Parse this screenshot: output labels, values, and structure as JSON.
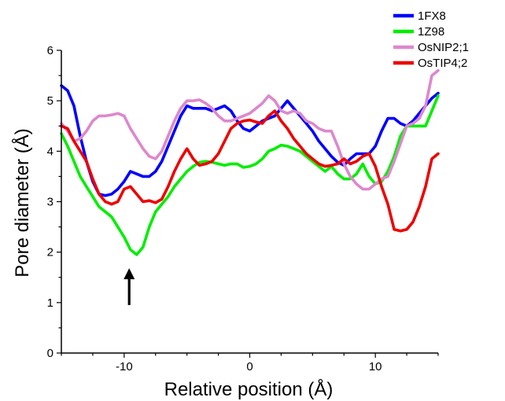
{
  "chart_data": {
    "type": "line",
    "xlabel": "Relative position (Å)",
    "ylabel": "Pore diameter (Å)",
    "xlim": [
      -15,
      15
    ],
    "ylim": [
      0,
      6
    ],
    "x_ticks": [
      -10,
      0,
      10
    ],
    "y_ticks": [
      0,
      1,
      2,
      3,
      4,
      5,
      6
    ],
    "grid": false,
    "legend_position": "top-right",
    "annotation": {
      "type": "arrow",
      "direction": "up",
      "x": -9.6,
      "y_from": 0.95,
      "y_to": 1.65
    },
    "series": [
      {
        "name": "1FX8",
        "color": "#0000ff",
        "points": [
          [
            -15,
            5.3
          ],
          [
            -14.5,
            5.2
          ],
          [
            -14,
            4.9
          ],
          [
            -13.5,
            4.3
          ],
          [
            -13,
            3.8
          ],
          [
            -12.5,
            3.4
          ],
          [
            -12,
            3.15
          ],
          [
            -11.5,
            3.12
          ],
          [
            -11,
            3.15
          ],
          [
            -10.5,
            3.25
          ],
          [
            -10,
            3.4
          ],
          [
            -9.5,
            3.6
          ],
          [
            -9,
            3.55
          ],
          [
            -8.5,
            3.5
          ],
          [
            -8,
            3.5
          ],
          [
            -7.5,
            3.6
          ],
          [
            -7,
            3.8
          ],
          [
            -6.5,
            4.1
          ],
          [
            -6,
            4.4
          ],
          [
            -5.5,
            4.7
          ],
          [
            -5,
            4.9
          ],
          [
            -4.5,
            4.85
          ],
          [
            -4,
            4.85
          ],
          [
            -3.5,
            4.85
          ],
          [
            -3,
            4.8
          ],
          [
            -2.5,
            4.85
          ],
          [
            -2,
            4.9
          ],
          [
            -1.5,
            4.8
          ],
          [
            -1,
            4.6
          ],
          [
            -0.5,
            4.45
          ],
          [
            0,
            4.4
          ],
          [
            0.5,
            4.5
          ],
          [
            1,
            4.6
          ],
          [
            1.5,
            4.65
          ],
          [
            2,
            4.7
          ],
          [
            2.5,
            4.85
          ],
          [
            3,
            5.0
          ],
          [
            3.5,
            4.85
          ],
          [
            4,
            4.7
          ],
          [
            4.5,
            4.55
          ],
          [
            5,
            4.4
          ],
          [
            5.5,
            4.2
          ],
          [
            6,
            4.05
          ],
          [
            6.5,
            3.9
          ],
          [
            7,
            3.78
          ],
          [
            7.5,
            3.72
          ],
          [
            8,
            3.85
          ],
          [
            8.5,
            3.95
          ],
          [
            9,
            3.95
          ],
          [
            9.5,
            3.95
          ],
          [
            10,
            4.1
          ],
          [
            10.5,
            4.4
          ],
          [
            11,
            4.65
          ],
          [
            11.5,
            4.65
          ],
          [
            12,
            4.55
          ],
          [
            12.5,
            4.5
          ],
          [
            13,
            4.6
          ],
          [
            13.5,
            4.75
          ],
          [
            14,
            4.9
          ],
          [
            14.5,
            5.05
          ],
          [
            15,
            5.15
          ]
        ]
      },
      {
        "name": "1Z98",
        "color": "#00ee00",
        "points": [
          [
            -15,
            4.35
          ],
          [
            -14.5,
            4.1
          ],
          [
            -14,
            3.8
          ],
          [
            -13.5,
            3.5
          ],
          [
            -13,
            3.3
          ],
          [
            -12.5,
            3.1
          ],
          [
            -12,
            2.9
          ],
          [
            -11.5,
            2.8
          ],
          [
            -11,
            2.7
          ],
          [
            -10.5,
            2.5
          ],
          [
            -10,
            2.3
          ],
          [
            -9.5,
            2.05
          ],
          [
            -9,
            1.95
          ],
          [
            -8.5,
            2.1
          ],
          [
            -8,
            2.5
          ],
          [
            -7.5,
            2.8
          ],
          [
            -7,
            2.95
          ],
          [
            -6.5,
            3.1
          ],
          [
            -6,
            3.3
          ],
          [
            -5.5,
            3.45
          ],
          [
            -5,
            3.6
          ],
          [
            -4.5,
            3.7
          ],
          [
            -4,
            3.78
          ],
          [
            -3.5,
            3.8
          ],
          [
            -3,
            3.78
          ],
          [
            -2.5,
            3.75
          ],
          [
            -2,
            3.72
          ],
          [
            -1.5,
            3.75
          ],
          [
            -1,
            3.75
          ],
          [
            -0.5,
            3.68
          ],
          [
            0,
            3.7
          ],
          [
            0.5,
            3.75
          ],
          [
            1,
            3.85
          ],
          [
            1.5,
            4.0
          ],
          [
            2,
            4.05
          ],
          [
            2.5,
            4.12
          ],
          [
            3,
            4.1
          ],
          [
            3.5,
            4.05
          ],
          [
            4,
            4.0
          ],
          [
            4.5,
            3.9
          ],
          [
            5,
            3.8
          ],
          [
            5.5,
            3.7
          ],
          [
            6,
            3.6
          ],
          [
            6.5,
            3.7
          ],
          [
            7,
            3.55
          ],
          [
            7.5,
            3.45
          ],
          [
            8,
            3.45
          ],
          [
            8.5,
            3.55
          ],
          [
            9,
            3.75
          ],
          [
            9.5,
            3.5
          ],
          [
            10,
            3.35
          ],
          [
            10.5,
            3.4
          ],
          [
            11,
            3.6
          ],
          [
            11.5,
            3.9
          ],
          [
            12,
            4.3
          ],
          [
            12.5,
            4.5
          ],
          [
            13,
            4.5
          ],
          [
            13.5,
            4.5
          ],
          [
            14,
            4.5
          ],
          [
            14.5,
            4.8
          ],
          [
            15,
            5.1
          ]
        ]
      },
      {
        "name": "OsNIP2;1",
        "color": "#dd88cc",
        "points": [
          [
            -15,
            4.55
          ],
          [
            -14.5,
            4.4
          ],
          [
            -14,
            4.2
          ],
          [
            -13.5,
            4.25
          ],
          [
            -13,
            4.4
          ],
          [
            -12.5,
            4.6
          ],
          [
            -12,
            4.7
          ],
          [
            -11.5,
            4.7
          ],
          [
            -11,
            4.72
          ],
          [
            -10.5,
            4.75
          ],
          [
            -10,
            4.7
          ],
          [
            -9.5,
            4.45
          ],
          [
            -9,
            4.25
          ],
          [
            -8.5,
            4.05
          ],
          [
            -8,
            3.9
          ],
          [
            -7.5,
            3.85
          ],
          [
            -7,
            4.0
          ],
          [
            -6.5,
            4.3
          ],
          [
            -6,
            4.6
          ],
          [
            -5.5,
            4.85
          ],
          [
            -5,
            5.0
          ],
          [
            -4.5,
            5.0
          ],
          [
            -4,
            5.02
          ],
          [
            -3.5,
            4.95
          ],
          [
            -3,
            4.85
          ],
          [
            -2.5,
            4.7
          ],
          [
            -2,
            4.6
          ],
          [
            -1.5,
            4.6
          ],
          [
            -1,
            4.65
          ],
          [
            -0.5,
            4.7
          ],
          [
            0,
            4.75
          ],
          [
            0.5,
            4.85
          ],
          [
            1,
            4.95
          ],
          [
            1.5,
            5.1
          ],
          [
            2,
            5.0
          ],
          [
            2.5,
            4.8
          ],
          [
            3,
            4.75
          ],
          [
            3.5,
            4.8
          ],
          [
            4,
            4.75
          ],
          [
            4.5,
            4.6
          ],
          [
            5,
            4.55
          ],
          [
            5.5,
            4.45
          ],
          [
            6,
            4.4
          ],
          [
            6.5,
            4.4
          ],
          [
            7,
            4.1
          ],
          [
            7.5,
            3.75
          ],
          [
            8,
            3.5
          ],
          [
            8.5,
            3.35
          ],
          [
            9,
            3.25
          ],
          [
            9.5,
            3.25
          ],
          [
            10,
            3.35
          ],
          [
            10.5,
            3.45
          ],
          [
            11,
            3.5
          ],
          [
            11.5,
            3.8
          ],
          [
            12,
            4.15
          ],
          [
            12.5,
            4.5
          ],
          [
            13,
            4.55
          ],
          [
            13.5,
            4.65
          ],
          [
            14,
            4.9
          ],
          [
            14.5,
            5.5
          ],
          [
            15,
            5.6
          ]
        ]
      },
      {
        "name": "OsTIP4;2",
        "color": "#ee0000",
        "points": [
          [
            -15,
            4.5
          ],
          [
            -14.5,
            4.45
          ],
          [
            -14,
            4.2
          ],
          [
            -13.5,
            4.0
          ],
          [
            -13,
            3.8
          ],
          [
            -12.5,
            3.45
          ],
          [
            -12,
            3.15
          ],
          [
            -11.5,
            3.0
          ],
          [
            -11,
            2.95
          ],
          [
            -10.5,
            3.0
          ],
          [
            -10,
            3.25
          ],
          [
            -9.5,
            3.3
          ],
          [
            -9,
            3.15
          ],
          [
            -8.5,
            3.0
          ],
          [
            -8,
            3.02
          ],
          [
            -7.5,
            2.98
          ],
          [
            -7,
            3.05
          ],
          [
            -6.5,
            3.3
          ],
          [
            -6,
            3.6
          ],
          [
            -5.5,
            3.85
          ],
          [
            -5,
            4.05
          ],
          [
            -4.5,
            3.85
          ],
          [
            -4,
            3.72
          ],
          [
            -3.5,
            3.75
          ],
          [
            -3,
            3.8
          ],
          [
            -2.5,
            3.95
          ],
          [
            -2,
            4.2
          ],
          [
            -1.5,
            4.45
          ],
          [
            -1,
            4.55
          ],
          [
            -0.5,
            4.6
          ],
          [
            0,
            4.62
          ],
          [
            0.5,
            4.58
          ],
          [
            1,
            4.55
          ],
          [
            1.5,
            4.7
          ],
          [
            2,
            4.8
          ],
          [
            2.5,
            4.6
          ],
          [
            3,
            4.45
          ],
          [
            3.5,
            4.25
          ],
          [
            4,
            4.1
          ],
          [
            4.5,
            3.95
          ],
          [
            5,
            3.85
          ],
          [
            5.5,
            3.75
          ],
          [
            6,
            3.7
          ],
          [
            6.5,
            3.72
          ],
          [
            7,
            3.75
          ],
          [
            7.5,
            3.85
          ],
          [
            8,
            3.75
          ],
          [
            8.5,
            3.8
          ],
          [
            9,
            3.9
          ],
          [
            9.5,
            3.95
          ],
          [
            10,
            3.7
          ],
          [
            10.5,
            3.3
          ],
          [
            11,
            2.95
          ],
          [
            11.5,
            2.45
          ],
          [
            12,
            2.42
          ],
          [
            12.5,
            2.45
          ],
          [
            13,
            2.6
          ],
          [
            13.5,
            2.9
          ],
          [
            14,
            3.3
          ],
          [
            14.5,
            3.85
          ],
          [
            15,
            3.95
          ]
        ]
      }
    ]
  }
}
